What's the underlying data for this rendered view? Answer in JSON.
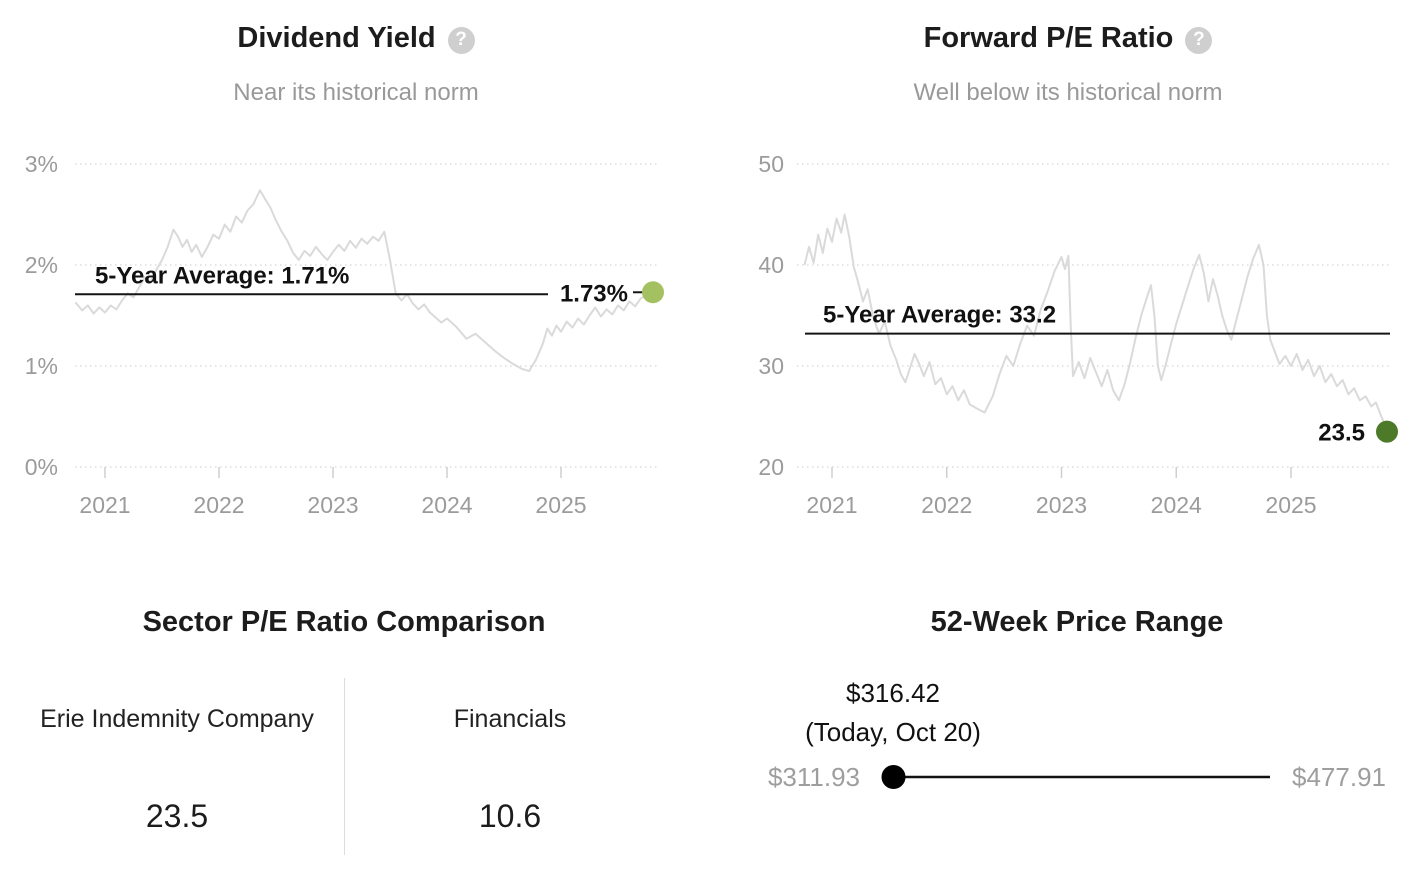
{
  "icons": {
    "help_glyph": "?"
  },
  "colors": {
    "dividend_dot": "#a4c161",
    "pe_dot": "#4d7a28",
    "series_line": "#dadada",
    "average_line": "#141414",
    "muted_text": "#9b9b9b",
    "range_marker": "#000000"
  },
  "chart_data": [
    {
      "type": "line",
      "id": "dividend-yield",
      "title": "Dividend Yield",
      "subtitle": "Near its historical norm",
      "xlabel": "",
      "ylabel": "",
      "ylim": [
        0,
        3
      ],
      "yticks": [
        3,
        2,
        1,
        0
      ],
      "ytick_labels": [
        "3%",
        "2%",
        "1%",
        "0%"
      ],
      "xticks": [
        2021,
        2022,
        2023,
        2024,
        2025
      ],
      "grid": "dotted-horizontal",
      "legend": "none",
      "average": {
        "value": 1.71,
        "label": "5-Year Average: 1.71%"
      },
      "current": {
        "value": 1.73,
        "label": "1.73%"
      },
      "dot_color": "#a4c161",
      "points": [
        [
          2020.74,
          1.63
        ],
        [
          2020.8,
          1.55
        ],
        [
          2020.85,
          1.6
        ],
        [
          2020.9,
          1.52
        ],
        [
          2020.95,
          1.58
        ],
        [
          2021.0,
          1.53
        ],
        [
          2021.05,
          1.6
        ],
        [
          2021.1,
          1.56
        ],
        [
          2021.15,
          1.65
        ],
        [
          2021.2,
          1.72
        ],
        [
          2021.25,
          1.68
        ],
        [
          2021.3,
          1.78
        ],
        [
          2021.35,
          1.88
        ],
        [
          2021.4,
          1.83
        ],
        [
          2021.45,
          1.95
        ],
        [
          2021.5,
          2.05
        ],
        [
          2021.55,
          2.18
        ],
        [
          2021.6,
          2.35
        ],
        [
          2021.64,
          2.28
        ],
        [
          2021.68,
          2.18
        ],
        [
          2021.72,
          2.25
        ],
        [
          2021.76,
          2.13
        ],
        [
          2021.8,
          2.2
        ],
        [
          2021.85,
          2.08
        ],
        [
          2021.9,
          2.18
        ],
        [
          2021.95,
          2.3
        ],
        [
          2022.0,
          2.26
        ],
        [
          2022.05,
          2.4
        ],
        [
          2022.1,
          2.33
        ],
        [
          2022.15,
          2.48
        ],
        [
          2022.2,
          2.42
        ],
        [
          2022.25,
          2.54
        ],
        [
          2022.3,
          2.6
        ],
        [
          2022.36,
          2.74
        ],
        [
          2022.4,
          2.66
        ],
        [
          2022.45,
          2.57
        ],
        [
          2022.5,
          2.44
        ],
        [
          2022.55,
          2.33
        ],
        [
          2022.6,
          2.24
        ],
        [
          2022.65,
          2.12
        ],
        [
          2022.7,
          2.05
        ],
        [
          2022.75,
          2.14
        ],
        [
          2022.8,
          2.09
        ],
        [
          2022.85,
          2.18
        ],
        [
          2022.9,
          2.11
        ],
        [
          2022.95,
          2.05
        ],
        [
          2023.0,
          2.13
        ],
        [
          2023.05,
          2.2
        ],
        [
          2023.1,
          2.14
        ],
        [
          2023.15,
          2.24
        ],
        [
          2023.2,
          2.17
        ],
        [
          2023.25,
          2.26
        ],
        [
          2023.3,
          2.21
        ],
        [
          2023.35,
          2.28
        ],
        [
          2023.4,
          2.24
        ],
        [
          2023.45,
          2.33
        ],
        [
          2023.5,
          2.05
        ],
        [
          2023.55,
          1.72
        ],
        [
          2023.6,
          1.65
        ],
        [
          2023.65,
          1.71
        ],
        [
          2023.7,
          1.62
        ],
        [
          2023.75,
          1.56
        ],
        [
          2023.8,
          1.61
        ],
        [
          2023.85,
          1.53
        ],
        [
          2023.9,
          1.48
        ],
        [
          2023.95,
          1.43
        ],
        [
          2024.0,
          1.47
        ],
        [
          2024.08,
          1.39
        ],
        [
          2024.17,
          1.27
        ],
        [
          2024.25,
          1.32
        ],
        [
          2024.33,
          1.24
        ],
        [
          2024.42,
          1.15
        ],
        [
          2024.5,
          1.08
        ],
        [
          2024.58,
          1.02
        ],
        [
          2024.66,
          0.97
        ],
        [
          2024.72,
          0.95
        ],
        [
          2024.78,
          1.06
        ],
        [
          2024.84,
          1.22
        ],
        [
          2024.88,
          1.37
        ],
        [
          2024.92,
          1.3
        ],
        [
          2024.96,
          1.4
        ],
        [
          2025.0,
          1.34
        ],
        [
          2025.05,
          1.44
        ],
        [
          2025.1,
          1.38
        ],
        [
          2025.15,
          1.47
        ],
        [
          2025.2,
          1.41
        ],
        [
          2025.25,
          1.5
        ],
        [
          2025.3,
          1.58
        ],
        [
          2025.35,
          1.49
        ],
        [
          2025.4,
          1.56
        ],
        [
          2025.45,
          1.51
        ],
        [
          2025.5,
          1.6
        ],
        [
          2025.55,
          1.55
        ],
        [
          2025.6,
          1.64
        ],
        [
          2025.65,
          1.59
        ],
        [
          2025.7,
          1.67
        ],
        [
          2025.75,
          1.7
        ],
        [
          2025.81,
          1.73
        ]
      ]
    },
    {
      "type": "line",
      "id": "forward-pe",
      "title": "Forward P/E Ratio",
      "subtitle": "Well below its historical norm",
      "xlabel": "",
      "ylabel": "",
      "ylim": [
        20,
        50
      ],
      "yticks": [
        50,
        40,
        30,
        20
      ],
      "ytick_labels": [
        "50",
        "40",
        "30",
        "20"
      ],
      "xticks": [
        2021,
        2022,
        2023,
        2024,
        2025
      ],
      "grid": "dotted-horizontal",
      "legend": "none",
      "average": {
        "value": 33.2,
        "label": "5-Year Average: 33.2"
      },
      "current": {
        "value": 23.5,
        "label": "23.5"
      },
      "dot_color": "#4d7a28",
      "points": [
        [
          2020.76,
          40.0
        ],
        [
          2020.8,
          41.8
        ],
        [
          2020.84,
          40.2
        ],
        [
          2020.88,
          43.0
        ],
        [
          2020.92,
          41.2
        ],
        [
          2020.96,
          43.6
        ],
        [
          2021.0,
          42.3
        ],
        [
          2021.04,
          44.6
        ],
        [
          2021.08,
          43.2
        ],
        [
          2021.11,
          45.0
        ],
        [
          2021.15,
          42.8
        ],
        [
          2021.19,
          39.8
        ],
        [
          2021.23,
          38.2
        ],
        [
          2021.27,
          36.4
        ],
        [
          2021.31,
          37.6
        ],
        [
          2021.36,
          34.8
        ],
        [
          2021.41,
          33.2
        ],
        [
          2021.46,
          34.4
        ],
        [
          2021.51,
          32.0
        ],
        [
          2021.56,
          30.6
        ],
        [
          2021.6,
          29.2
        ],
        [
          2021.64,
          28.4
        ],
        [
          2021.68,
          29.8
        ],
        [
          2021.72,
          31.2
        ],
        [
          2021.76,
          30.2
        ],
        [
          2021.8,
          29.0
        ],
        [
          2021.85,
          30.4
        ],
        [
          2021.9,
          28.2
        ],
        [
          2021.95,
          28.8
        ],
        [
          2022.0,
          27.2
        ],
        [
          2022.05,
          28.0
        ],
        [
          2022.1,
          26.6
        ],
        [
          2022.15,
          27.6
        ],
        [
          2022.2,
          26.2
        ],
        [
          2022.26,
          25.8
        ],
        [
          2022.33,
          25.4
        ],
        [
          2022.4,
          27.0
        ],
        [
          2022.46,
          29.2
        ],
        [
          2022.52,
          31.0
        ],
        [
          2022.58,
          30.0
        ],
        [
          2022.64,
          32.2
        ],
        [
          2022.7,
          34.0
        ],
        [
          2022.76,
          33.0
        ],
        [
          2022.82,
          35.6
        ],
        [
          2022.88,
          37.4
        ],
        [
          2022.94,
          39.4
        ],
        [
          2023.0,
          40.8
        ],
        [
          2023.03,
          39.6
        ],
        [
          2023.06,
          40.9
        ],
        [
          2023.08,
          34.0
        ],
        [
          2023.1,
          29.0
        ],
        [
          2023.15,
          30.4
        ],
        [
          2023.2,
          28.8
        ],
        [
          2023.25,
          30.8
        ],
        [
          2023.3,
          29.4
        ],
        [
          2023.35,
          28.0
        ],
        [
          2023.4,
          29.6
        ],
        [
          2023.45,
          27.6
        ],
        [
          2023.5,
          26.6
        ],
        [
          2023.55,
          28.2
        ],
        [
          2023.6,
          30.4
        ],
        [
          2023.65,
          33.0
        ],
        [
          2023.7,
          35.2
        ],
        [
          2023.75,
          37.0
        ],
        [
          2023.78,
          38.0
        ],
        [
          2023.81,
          35.0
        ],
        [
          2023.84,
          30.0
        ],
        [
          2023.87,
          28.6
        ],
        [
          2023.91,
          30.2
        ],
        [
          2023.95,
          32.0
        ],
        [
          2024.0,
          34.2
        ],
        [
          2024.05,
          36.0
        ],
        [
          2024.1,
          37.8
        ],
        [
          2024.15,
          39.6
        ],
        [
          2024.2,
          41.0
        ],
        [
          2024.24,
          39.2
        ],
        [
          2024.28,
          36.4
        ],
        [
          2024.32,
          38.6
        ],
        [
          2024.36,
          37.0
        ],
        [
          2024.4,
          35.0
        ],
        [
          2024.44,
          33.6
        ],
        [
          2024.48,
          32.6
        ],
        [
          2024.52,
          34.4
        ],
        [
          2024.57,
          36.6
        ],
        [
          2024.62,
          38.8
        ],
        [
          2024.67,
          40.6
        ],
        [
          2024.72,
          42.0
        ],
        [
          2024.76,
          40.0
        ],
        [
          2024.79,
          35.0
        ],
        [
          2024.82,
          32.6
        ],
        [
          2024.86,
          31.4
        ],
        [
          2024.9,
          30.2
        ],
        [
          2024.95,
          31.0
        ],
        [
          2025.0,
          30.0
        ],
        [
          2025.05,
          31.2
        ],
        [
          2025.1,
          29.6
        ],
        [
          2025.15,
          30.6
        ],
        [
          2025.2,
          29.0
        ],
        [
          2025.25,
          30.0
        ],
        [
          2025.3,
          28.4
        ],
        [
          2025.35,
          29.2
        ],
        [
          2025.4,
          28.0
        ],
        [
          2025.45,
          28.6
        ],
        [
          2025.5,
          27.2
        ],
        [
          2025.55,
          27.8
        ],
        [
          2025.6,
          26.6
        ],
        [
          2025.65,
          27.0
        ],
        [
          2025.7,
          26.0
        ],
        [
          2025.74,
          26.4
        ],
        [
          2025.78,
          25.2
        ],
        [
          2025.81,
          24.4
        ],
        [
          2025.84,
          23.5
        ]
      ]
    },
    {
      "type": "table",
      "id": "sector-pe-comparison",
      "title": "Sector P/E Ratio Comparison",
      "columns": [
        "Erie Indemnity Company",
        "Financials"
      ],
      "values": [
        "23.5",
        "10.6"
      ]
    },
    {
      "type": "range",
      "id": "52-week-price-range",
      "title": "52-Week Price Range",
      "low": 311.93,
      "high": 477.91,
      "current": 316.42,
      "low_label": "$311.93",
      "high_label": "$477.91",
      "current_label": "$316.42",
      "current_sublabel": "(Today, Oct 20)"
    }
  ]
}
